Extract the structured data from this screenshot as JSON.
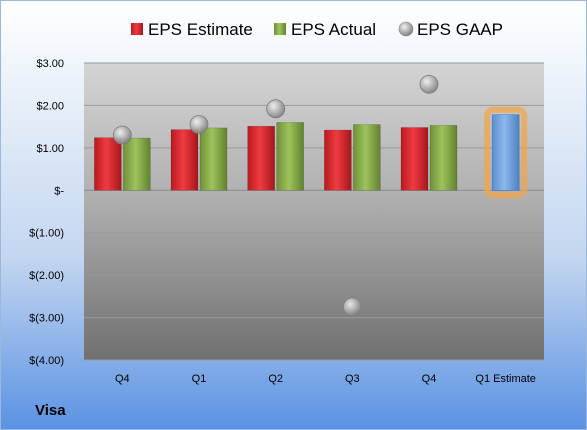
{
  "company": "Visa",
  "colors": {
    "estimate": "#d4232a",
    "actual": "#86a84a",
    "gaap": "#a8a8a8",
    "future_estimate": "#6fa1dc",
    "future_glow": "#f2a54a",
    "background_top": "#ffffff",
    "background_bottom": "#5b92e3"
  },
  "chart_data": {
    "type": "bar",
    "categories": [
      "Q4",
      "Q1",
      "Q2",
      "Q3",
      "Q4",
      "Q1 Estimate"
    ],
    "series": [
      {
        "name": "EPS Estimate",
        "marker": "bar",
        "values": [
          1.24,
          1.43,
          1.51,
          1.42,
          1.48,
          null
        ]
      },
      {
        "name": "EPS Actual",
        "marker": "bar",
        "values": [
          1.23,
          1.47,
          1.6,
          1.55,
          1.53,
          null
        ]
      },
      {
        "name": "EPS GAAP",
        "marker": "circle",
        "values": [
          1.3,
          1.55,
          1.92,
          -2.75,
          2.5,
          null
        ]
      }
    ],
    "forecast": {
      "category": "Q1 Estimate",
      "value": 1.78
    },
    "yticks": [
      3,
      2,
      1,
      0,
      -1,
      -2,
      -3,
      -4
    ],
    "ytick_labels": [
      "$3.00",
      "$2.00",
      "$1.00",
      "$-",
      "$(1.00)",
      "$(2.00)",
      "$(3.00)",
      "$(4.00)"
    ],
    "ylim": [
      -4,
      3
    ],
    "grid": true,
    "legend_position": "top"
  }
}
